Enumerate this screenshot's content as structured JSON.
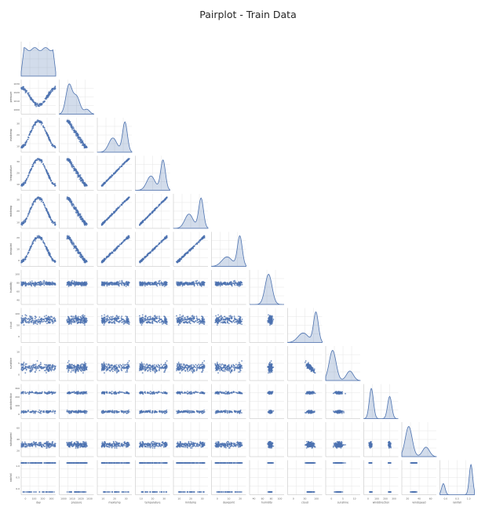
{
  "chart_data": {
    "type": "pairplot",
    "title": "Pairplot - Train Data",
    "corner": true,
    "grid": true,
    "diagonal": "kde",
    "offdiagonal": "scatter",
    "color": "#4c72b0",
    "variables": [
      {
        "name": "day",
        "kind": "uniform",
        "range": [
          0,
          365
        ],
        "ticks": [
          "0",
          "100",
          "200",
          "300"
        ]
      },
      {
        "name": "pressure",
        "kind": "skew",
        "range": [
          998,
          1035
        ],
        "ticks": [
          "1000",
          "1010",
          "1020",
          "1030"
        ]
      },
      {
        "name": "maxtemp",
        "kind": "bimodal-left",
        "range": [
          10,
          37
        ],
        "ticks": [
          "10",
          "20",
          "30"
        ]
      },
      {
        "name": "temparature",
        "kind": "bimodal-left",
        "range": [
          8,
          33
        ],
        "ticks": [
          "10",
          "20",
          "30"
        ]
      },
      {
        "name": "mintemp",
        "kind": "bimodal-left",
        "range": [
          5,
          30
        ],
        "ticks": [
          "10",
          "20",
          "30"
        ]
      },
      {
        "name": "dewpoint",
        "kind": "left-skew",
        "range": [
          -1,
          27
        ],
        "ticks": [
          "0",
          "10",
          "20"
        ]
      },
      {
        "name": "humidity",
        "kind": "normal",
        "range": [
          40,
          100
        ],
        "ticks": [
          "40",
          "60",
          "80",
          "100"
        ]
      },
      {
        "name": "cloud",
        "kind": "left-skew",
        "range": [
          0,
          100
        ],
        "ticks": [
          "0",
          "50",
          "100"
        ]
      },
      {
        "name": "sunshine",
        "kind": "right-skew",
        "range": [
          0,
          12
        ],
        "ticks": [
          "0",
          "5",
          "10"
        ]
      },
      {
        "name": "winddirection",
        "kind": "bimodal",
        "range": [
          10,
          300
        ],
        "ticks": [
          "0",
          "100",
          "200",
          "300"
        ]
      },
      {
        "name": "windspeed",
        "kind": "right-skew",
        "range": [
          4,
          60
        ],
        "ticks": [
          "20",
          "40",
          "60"
        ]
      },
      {
        "name": "rainfall",
        "kind": "binary",
        "range": [
          0,
          1
        ],
        "ticks": [
          "0.0",
          "0.5",
          "1.0"
        ],
        "class_share": [
          0.25,
          0.75
        ]
      }
    ],
    "axis_labels": [
      "day",
      "pressure",
      "maxtemp",
      "temparature",
      "mintemp",
      "dewpoint",
      "humidity",
      "cloud",
      "sunshine",
      "winddirection",
      "windspeed",
      "rainfall"
    ]
  }
}
